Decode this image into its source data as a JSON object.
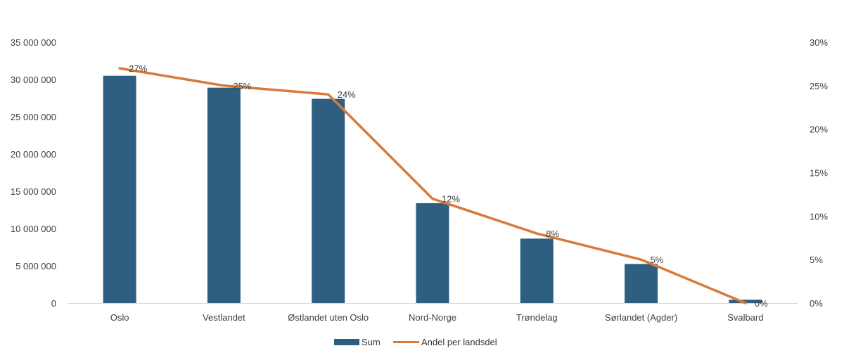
{
  "chart_data": {
    "type": "bar",
    "categories": [
      "Oslo",
      "Vestlandet",
      "Østlandet uten Oslo",
      "Nord-Norge",
      "Trøndelag",
      "Sørlandet (Agder)",
      "Svalbard"
    ],
    "series": [
      {
        "name": "Sum",
        "type": "bar",
        "axis": "left",
        "color": "#2e5f80",
        "values": [
          30500000,
          28900000,
          27400000,
          13400000,
          8650000,
          5250000,
          450000
        ]
      },
      {
        "name": "Andel per landsdel",
        "type": "line",
        "axis": "right",
        "color": "#d97a3a",
        "values": [
          0.27,
          0.25,
          0.24,
          0.12,
          0.08,
          0.05,
          0.0
        ],
        "data_labels": [
          "27%",
          "25%",
          "24%",
          "12%",
          "8%",
          "5%",
          "0%"
        ]
      }
    ],
    "left_axis": {
      "ylim": [
        0,
        35000000
      ],
      "ticks": [
        0,
        5000000,
        10000000,
        15000000,
        20000000,
        25000000,
        30000000,
        35000000
      ],
      "tick_labels": [
        "0",
        "5 000 000",
        "10 000 000",
        "15 000 000",
        "20 000 000",
        "25 000 000",
        "30 000 000",
        "35 000 000"
      ]
    },
    "right_axis": {
      "ylim": [
        0,
        0.3
      ],
      "ticks": [
        0,
        0.05,
        0.1,
        0.15,
        0.2,
        0.25,
        0.3
      ],
      "tick_labels": [
        "0%",
        "5%",
        "10%",
        "15%",
        "20%",
        "25%",
        "30%"
      ]
    },
    "title": "",
    "xlabel": "",
    "ylabel": "",
    "grid": false,
    "legend": {
      "position": "bottom",
      "entries": [
        "Sum",
        "Andel per landsdel"
      ]
    }
  }
}
